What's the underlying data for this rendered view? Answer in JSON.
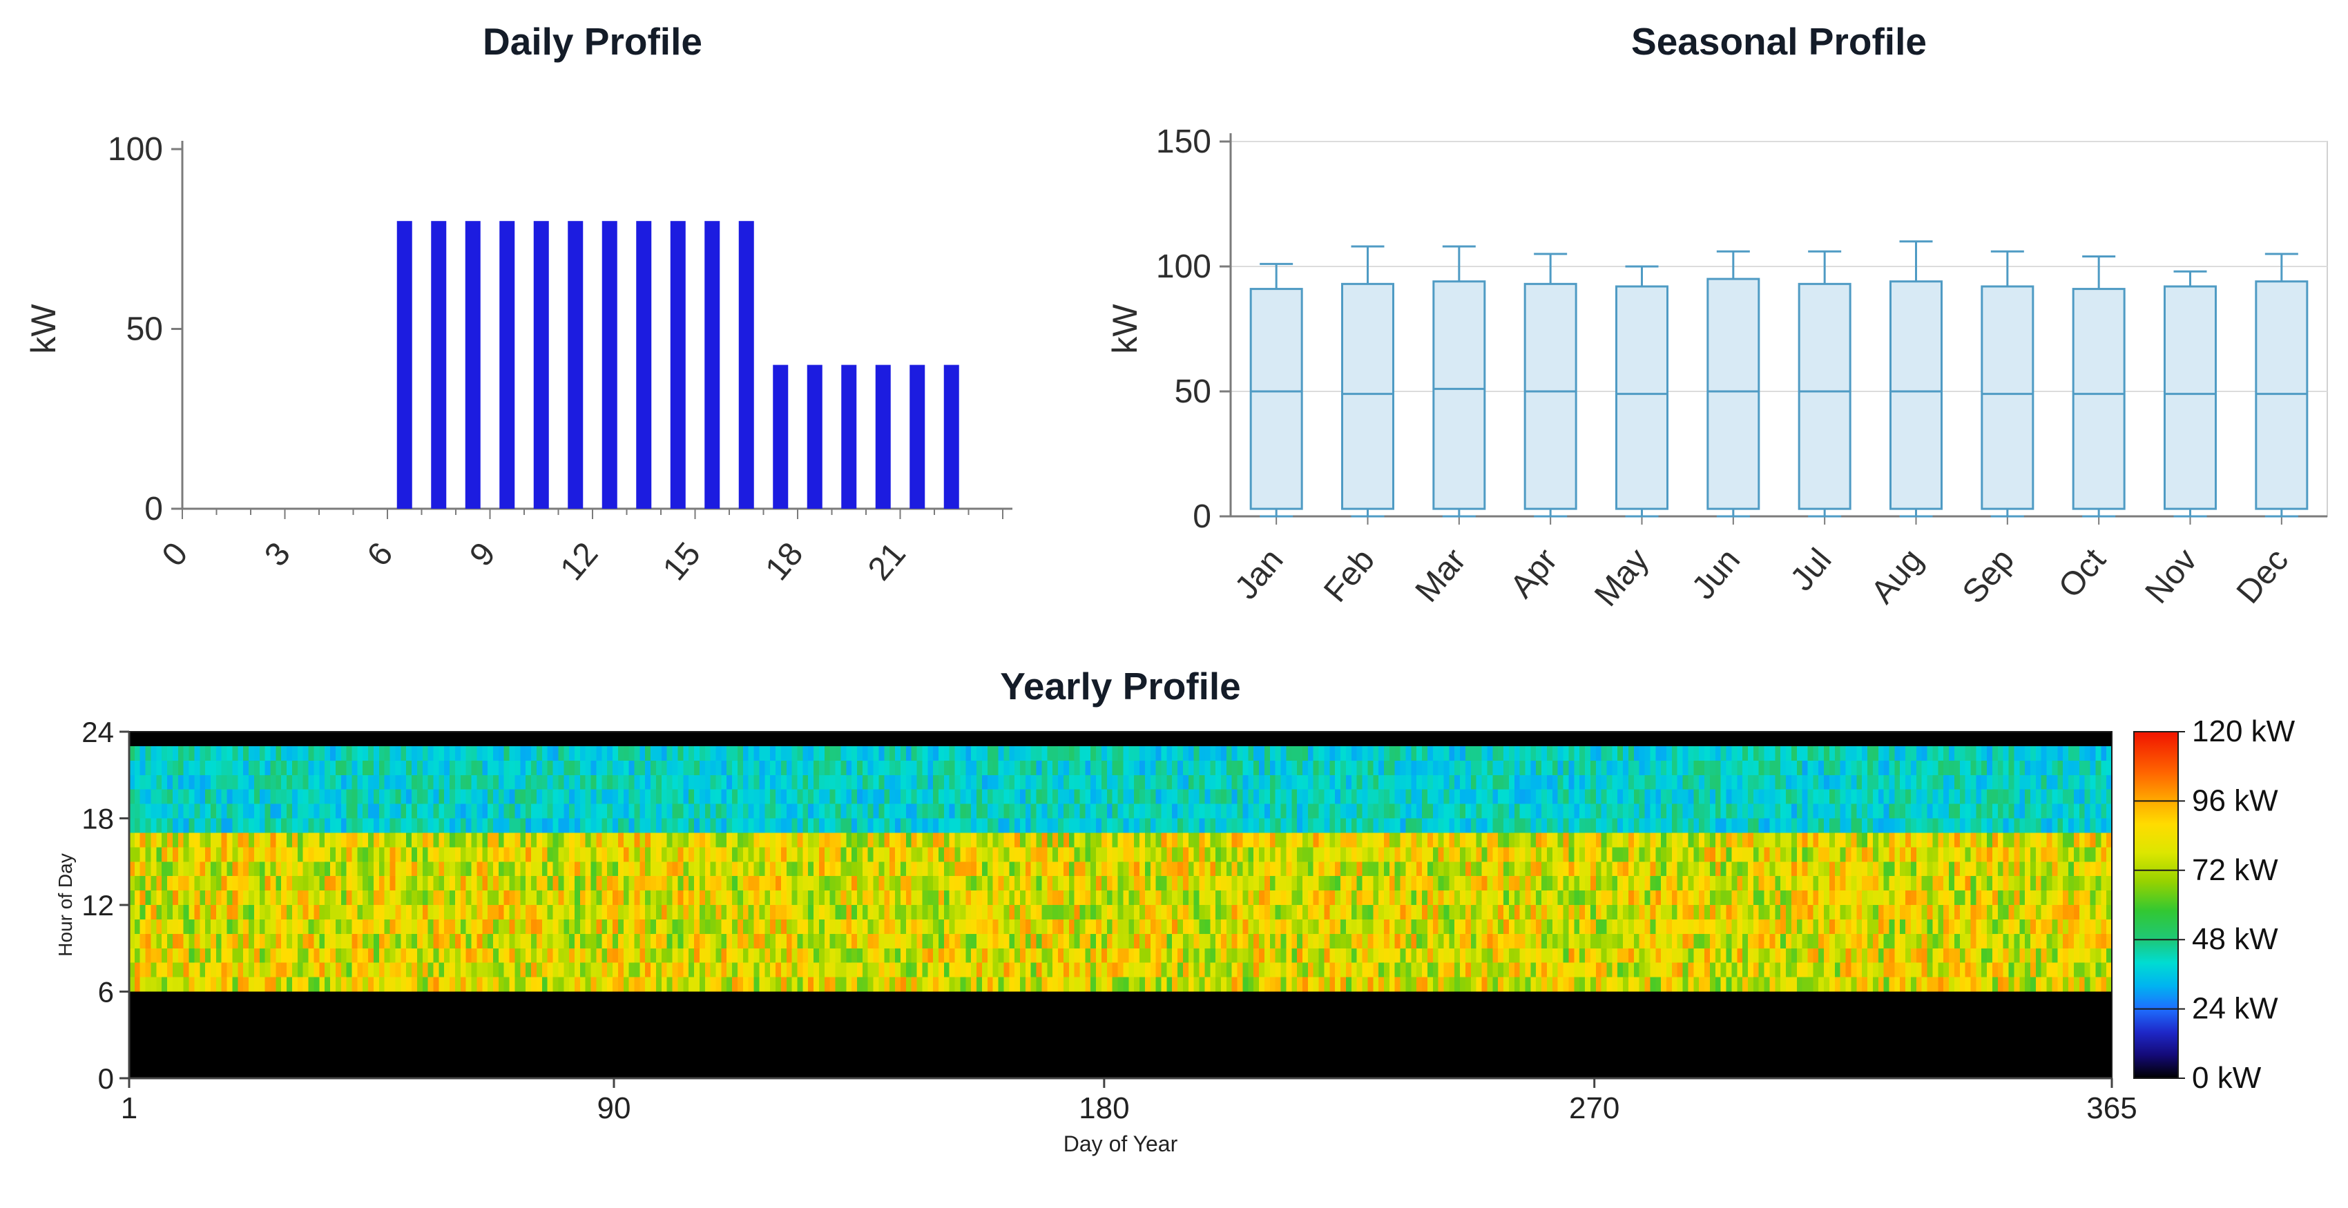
{
  "chart_data": [
    {
      "id": "daily",
      "type": "bar",
      "title": "Daily Profile",
      "xlabel": "",
      "ylabel": "kW",
      "ylim": [
        0,
        100
      ],
      "yticks": [
        0,
        50,
        100
      ],
      "xticks": [
        0,
        3,
        6,
        9,
        12,
        15,
        18,
        21
      ],
      "hours": [
        0,
        1,
        2,
        3,
        4,
        5,
        6,
        7,
        8,
        9,
        10,
        11,
        12,
        13,
        14,
        15,
        16,
        17,
        18,
        19,
        20,
        21,
        22,
        23
      ],
      "values": [
        0,
        0,
        0,
        0,
        0,
        0,
        80,
        80,
        80,
        80,
        80,
        80,
        80,
        80,
        80,
        80,
        80,
        40,
        40,
        40,
        40,
        40,
        40,
        0
      ],
      "bar_color": "#1c1ce0",
      "axis_color": "#7b7b7b",
      "label_color": "#2e2e2e"
    },
    {
      "id": "seasonal",
      "type": "box",
      "title": "Seasonal Profile",
      "ylabel": "kW",
      "ylim": [
        0,
        150
      ],
      "yticks": [
        0,
        50,
        100,
        150
      ],
      "categories": [
        "Jan",
        "Feb",
        "Mar",
        "Apr",
        "May",
        "Jun",
        "Jul",
        "Aug",
        "Sep",
        "Oct",
        "Nov",
        "Dec"
      ],
      "boxes": [
        {
          "month": "Jan",
          "whisker_low": 0,
          "q1": 3,
          "median": 50,
          "q3": 91,
          "whisker_high": 101
        },
        {
          "month": "Feb",
          "whisker_low": 0,
          "q1": 3,
          "median": 49,
          "q3": 93,
          "whisker_high": 108
        },
        {
          "month": "Mar",
          "whisker_low": 0,
          "q1": 3,
          "median": 51,
          "q3": 94,
          "whisker_high": 108
        },
        {
          "month": "Apr",
          "whisker_low": 0,
          "q1": 3,
          "median": 50,
          "q3": 93,
          "whisker_high": 105
        },
        {
          "month": "May",
          "whisker_low": 0,
          "q1": 3,
          "median": 49,
          "q3": 92,
          "whisker_high": 100
        },
        {
          "month": "Jun",
          "whisker_low": 0,
          "q1": 3,
          "median": 50,
          "q3": 95,
          "whisker_high": 106
        },
        {
          "month": "Jul",
          "whisker_low": 0,
          "q1": 3,
          "median": 50,
          "q3": 93,
          "whisker_high": 106
        },
        {
          "month": "Aug",
          "whisker_low": 0,
          "q1": 3,
          "median": 50,
          "q3": 94,
          "whisker_high": 110
        },
        {
          "month": "Sep",
          "whisker_low": 0,
          "q1": 3,
          "median": 49,
          "q3": 92,
          "whisker_high": 106
        },
        {
          "month": "Oct",
          "whisker_low": 0,
          "q1": 3,
          "median": 49,
          "q3": 91,
          "whisker_high": 104
        },
        {
          "month": "Nov",
          "whisker_low": 0,
          "q1": 3,
          "median": 49,
          "q3": 92,
          "whisker_high": 98
        },
        {
          "month": "Dec",
          "whisker_low": 0,
          "q1": 3,
          "median": 49,
          "q3": 94,
          "whisker_high": 105
        }
      ],
      "box_fill": "#d8eaf5",
      "box_stroke": "#4f9bc4",
      "grid_color": "#dcdcdc",
      "axis_color": "#7b7b7b",
      "label_color": "#2e2e2e"
    },
    {
      "id": "yearly",
      "type": "heatmap",
      "title": "Yearly Profile",
      "xlabel": "Day of Year",
      "ylabel": "Hour of Day",
      "xlim": [
        1,
        365
      ],
      "ylim": [
        0,
        24
      ],
      "xticks": [
        1,
        90,
        180,
        270,
        365
      ],
      "yticks": [
        0,
        6,
        12,
        18,
        24
      ],
      "colorbar": [
        {
          "value": 120,
          "label": "120 kW"
        },
        {
          "value": 96,
          "label": "96 kW"
        },
        {
          "value": 72,
          "label": "72 kW"
        },
        {
          "value": 48,
          "label": "48 kW"
        },
        {
          "value": 24,
          "label": "24 kW"
        },
        {
          "value": 0,
          "label": "0 kW"
        }
      ],
      "pattern": {
        "hours_0_to_6_kw": 0,
        "hours_6_to_17_kw": 80,
        "hours_17_to_23_kw": 40,
        "hour_23_to_24_kw": 0,
        "random_day_to_day_variability": 0.25
      },
      "colormap_stops": [
        {
          "value": 0,
          "color": "#000000"
        },
        {
          "value": 8,
          "color": "#140a78"
        },
        {
          "value": 16,
          "color": "#1e28c8"
        },
        {
          "value": 24,
          "color": "#1e6eff"
        },
        {
          "value": 32,
          "color": "#00b4f0"
        },
        {
          "value": 40,
          "color": "#00dcd2"
        },
        {
          "value": 48,
          "color": "#1ec878"
        },
        {
          "value": 58,
          "color": "#32c832"
        },
        {
          "value": 68,
          "color": "#96d200"
        },
        {
          "value": 78,
          "color": "#dce600"
        },
        {
          "value": 88,
          "color": "#ffdc00"
        },
        {
          "value": 96,
          "color": "#ffaa00"
        },
        {
          "value": 106,
          "color": "#ff6400"
        },
        {
          "value": 120,
          "color": "#f01400"
        }
      ],
      "axis_color": "#444444",
      "label_color": "#222222"
    }
  ]
}
